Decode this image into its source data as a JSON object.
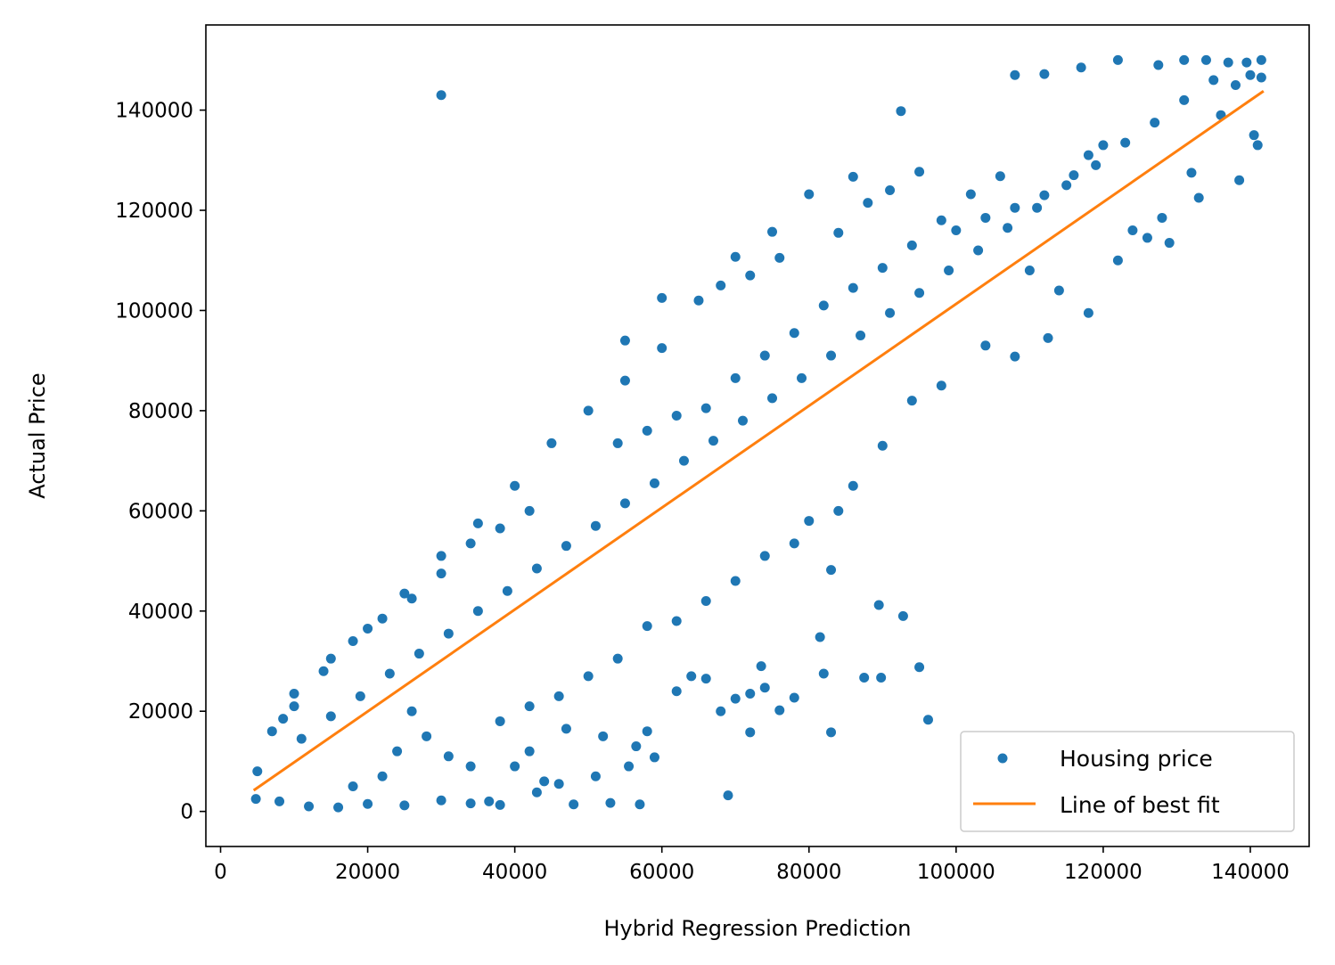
{
  "chart_data": {
    "type": "scatter",
    "title": "",
    "xlabel": "Hybrid Regression Prediction",
    "ylabel": "Actual Price",
    "xlim": [
      -2000,
      148000
    ],
    "ylim": [
      -7000,
      157000
    ],
    "xticks": [
      0,
      20000,
      40000,
      60000,
      80000,
      100000,
      120000,
      140000
    ],
    "xtick_labels": [
      "0",
      "20000",
      "40000",
      "60000",
      "80000",
      "100000",
      "120000",
      "140000"
    ],
    "yticks": [
      0,
      20000,
      40000,
      60000,
      80000,
      100000,
      120000,
      140000
    ],
    "ytick_labels": [
      "0",
      "20000",
      "40000",
      "60000",
      "80000",
      "100000",
      "120000",
      "140000"
    ],
    "grid": false,
    "legend_position": "lower-right",
    "colors": {
      "points": "#1f77b4",
      "fit_line": "#ff7f0e",
      "axes": "#000000",
      "legend_border": "#cccccc",
      "background": "#ffffff"
    },
    "series": [
      {
        "name": "Housing price",
        "kind": "points",
        "color": "#1f77b4",
        "points": [
          [
            30000,
            143000
          ],
          [
            92500,
            139800
          ],
          [
            89500,
            41200
          ],
          [
            92800,
            39000
          ],
          [
            95000,
            28800
          ],
          [
            96200,
            18300
          ],
          [
            83000,
            15800
          ],
          [
            83000,
            48200
          ],
          [
            81500,
            34800
          ],
          [
            69000,
            3200
          ],
          [
            57000,
            1400
          ],
          [
            53000,
            1700
          ],
          [
            59000,
            10800
          ],
          [
            55500,
            9000
          ],
          [
            48000,
            1400
          ],
          [
            43000,
            3800
          ],
          [
            36500,
            2000
          ],
          [
            87500,
            26700
          ],
          [
            89800,
            26700
          ],
          [
            82000,
            27500
          ],
          [
            72000,
            15800
          ],
          [
            72000,
            23500
          ],
          [
            70000,
            22500
          ],
          [
            73500,
            29000
          ],
          [
            74000,
            24700
          ],
          [
            108000,
            147000
          ],
          [
            112000,
            147200
          ],
          [
            117000,
            148500
          ],
          [
            122000,
            150000
          ],
          [
            127500,
            149000
          ],
          [
            131000,
            150000
          ],
          [
            134000,
            150000
          ],
          [
            139500,
            149500
          ],
          [
            141500,
            150000
          ],
          [
            137000,
            149500
          ],
          [
            124000,
            116000
          ],
          [
            129000,
            113500
          ],
          [
            132000,
            127500
          ],
          [
            138500,
            126000
          ],
          [
            140500,
            135000
          ],
          [
            133000,
            122500
          ],
          [
            136000,
            139000
          ],
          [
            141000,
            133000
          ],
          [
            106000,
            126800
          ],
          [
            102000,
            123200
          ],
          [
            95000,
            127700
          ],
          [
            86000,
            126700
          ],
          [
            80000,
            123200
          ],
          [
            75000,
            115700
          ],
          [
            70000,
            110700
          ],
          [
            65000,
            102000
          ],
          [
            60000,
            92500
          ],
          [
            55000,
            86000
          ],
          [
            50000,
            80000
          ],
          [
            45000,
            73500
          ],
          [
            40000,
            65000
          ],
          [
            35000,
            57500
          ],
          [
            30000,
            51000
          ],
          [
            25000,
            43500
          ],
          [
            20000,
            36500
          ],
          [
            15000,
            30500
          ],
          [
            10000,
            21000
          ],
          [
            7000,
            16000
          ],
          [
            5000,
            8000
          ],
          [
            4800,
            2500
          ],
          [
            8000,
            2000
          ],
          [
            12000,
            1000
          ],
          [
            16000,
            800
          ],
          [
            20000,
            1500
          ],
          [
            25000,
            1200
          ],
          [
            30000,
            2200
          ],
          [
            34000,
            1600
          ],
          [
            38000,
            1300
          ],
          [
            46000,
            5500
          ],
          [
            51000,
            7000
          ],
          [
            56500,
            13000
          ],
          [
            62000,
            24000
          ],
          [
            66000,
            26500
          ],
          [
            68000,
            20000
          ],
          [
            76000,
            20200
          ],
          [
            78000,
            22700
          ],
          [
            64000,
            27000
          ],
          [
            58000,
            16000
          ],
          [
            52000,
            15000
          ],
          [
            47000,
            16500
          ],
          [
            42000,
            12000
          ],
          [
            40000,
            9000
          ],
          [
            44000,
            6000
          ],
          [
            34000,
            9000
          ],
          [
            31000,
            11000
          ],
          [
            28000,
            15000
          ],
          [
            26000,
            20000
          ],
          [
            24000,
            12000
          ],
          [
            22000,
            7000
          ],
          [
            18000,
            5000
          ],
          [
            100000,
            116000
          ],
          [
            104000,
            118500
          ],
          [
            108000,
            120500
          ],
          [
            112000,
            123000
          ],
          [
            116000,
            127000
          ],
          [
            118000,
            131000
          ],
          [
            120000,
            133000
          ],
          [
            110000,
            108000
          ],
          [
            114000,
            104000
          ],
          [
            118000,
            99500
          ],
          [
            122000,
            110000
          ],
          [
            126000,
            114500
          ],
          [
            128000,
            118500
          ],
          [
            112500,
            94500
          ],
          [
            108000,
            90800
          ],
          [
            104000,
            93000
          ],
          [
            98000,
            85000
          ],
          [
            94000,
            82000
          ],
          [
            90000,
            73000
          ],
          [
            86000,
            65000
          ],
          [
            84000,
            60000
          ],
          [
            80000,
            58000
          ],
          [
            78000,
            53500
          ],
          [
            74000,
            51000
          ],
          [
            70000,
            46000
          ],
          [
            66000,
            42000
          ],
          [
            62000,
            38000
          ],
          [
            58000,
            37000
          ],
          [
            54000,
            30500
          ],
          [
            50000,
            27000
          ],
          [
            46000,
            23000
          ],
          [
            42000,
            21000
          ],
          [
            38000,
            18000
          ],
          [
            66000,
            80500
          ],
          [
            62000,
            79000
          ],
          [
            58000,
            76000
          ],
          [
            54000,
            73500
          ],
          [
            70000,
            86500
          ],
          [
            74000,
            91000
          ],
          [
            78000,
            95500
          ],
          [
            82000,
            101000
          ],
          [
            86000,
            104500
          ],
          [
            90000,
            108500
          ],
          [
            94000,
            113000
          ],
          [
            98000,
            118000
          ],
          [
            55000,
            94000
          ],
          [
            60000,
            102500
          ],
          [
            68000,
            105000
          ],
          [
            72000,
            107000
          ],
          [
            76000,
            110500
          ],
          [
            84000,
            115500
          ],
          [
            88000,
            121500
          ],
          [
            91000,
            124000
          ],
          [
            42000,
            60000
          ],
          [
            38000,
            56500
          ],
          [
            34000,
            53500
          ],
          [
            30000,
            47500
          ],
          [
            26000,
            42500
          ],
          [
            22000,
            38500
          ],
          [
            18000,
            34000
          ],
          [
            14000,
            28000
          ],
          [
            10000,
            23500
          ],
          [
            8500,
            18500
          ],
          [
            11000,
            14500
          ],
          [
            15000,
            19000
          ],
          [
            19000,
            23000
          ],
          [
            23000,
            27500
          ],
          [
            27000,
            31500
          ],
          [
            31000,
            35500
          ],
          [
            35000,
            40000
          ],
          [
            39000,
            44000
          ],
          [
            43000,
            48500
          ],
          [
            47000,
            53000
          ],
          [
            51000,
            57000
          ],
          [
            55000,
            61500
          ],
          [
            59000,
            65500
          ],
          [
            63000,
            70000
          ],
          [
            67000,
            74000
          ],
          [
            71000,
            78000
          ],
          [
            75000,
            82500
          ],
          [
            79000,
            86500
          ],
          [
            83000,
            91000
          ],
          [
            87000,
            95000
          ],
          [
            91000,
            99500
          ],
          [
            95000,
            103500
          ],
          [
            99000,
            108000
          ],
          [
            103000,
            112000
          ],
          [
            107000,
            116500
          ],
          [
            111000,
            120500
          ],
          [
            115000,
            125000
          ],
          [
            119000,
            129000
          ],
          [
            123000,
            133500
          ],
          [
            127000,
            137500
          ],
          [
            131000,
            142000
          ],
          [
            135000,
            146000
          ],
          [
            138000,
            145000
          ],
          [
            140000,
            147000
          ],
          [
            141500,
            146500
          ]
        ]
      },
      {
        "name": "Line of best fit",
        "kind": "line",
        "color": "#ff7f0e",
        "points": [
          [
            4500,
            4200
          ],
          [
            141800,
            143800
          ]
        ]
      }
    ]
  }
}
